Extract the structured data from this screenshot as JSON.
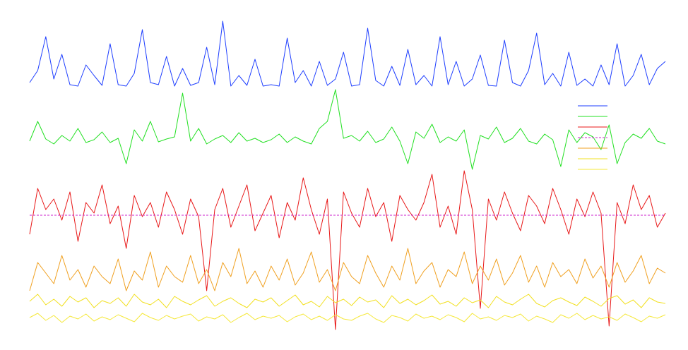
{
  "chart_data": {
    "type": "line",
    "ylim": [
      0,
      450
    ],
    "series": [
      {
        "color": "#1f3fff",
        "values": [
          355,
          372,
          420,
          360,
          395,
          352,
          350,
          380,
          365,
          351,
          410,
          352,
          350,
          368,
          430,
          355,
          352,
          392,
          350,
          375,
          351,
          355,
          405,
          352,
          442,
          350,
          365,
          351,
          388,
          350,
          352,
          350,
          418,
          355,
          372,
          350,
          385,
          351,
          360,
          398,
          350,
          352,
          432,
          358,
          350,
          378,
          351,
          402,
          352,
          365,
          350,
          420,
          352,
          385,
          350,
          360,
          394,
          351,
          350,
          415,
          355,
          350,
          372,
          425,
          352,
          368,
          350,
          398,
          351,
          360,
          350,
          380,
          352,
          410,
          350,
          365,
          395,
          352,
          375,
          385
        ]
      },
      {
        "color": "#22e022",
        "values": [
          272,
          300,
          275,
          268,
          280,
          272,
          290,
          270,
          274,
          285,
          270,
          276,
          240,
          288,
          272,
          300,
          271,
          275,
          278,
          340,
          272,
          290,
          268,
          275,
          280,
          270,
          284,
          272,
          276,
          270,
          274,
          282,
          270,
          278,
          272,
          268,
          290,
          300,
          345,
          276,
          280,
          272,
          286,
          270,
          275,
          292,
          272,
          240,
          285,
          276,
          296,
          270,
          278,
          272,
          288,
          232,
          280,
          275,
          292,
          270,
          276,
          290,
          272,
          268,
          282,
          274,
          236,
          288,
          270,
          284,
          278,
          260,
          295,
          240,
          270,
          282,
          276,
          290,
          272,
          268
        ]
      },
      {
        "color": "#e81818",
        "values": [
          140,
          205,
          175,
          190,
          160,
          200,
          130,
          185,
          170,
          210,
          155,
          180,
          120,
          195,
          165,
          185,
          150,
          200,
          175,
          140,
          190,
          165,
          60,
          175,
          205,
          150,
          180,
          210,
          145,
          170,
          195,
          135,
          185,
          160,
          220,
          175,
          140,
          190,
          5,
          200,
          170,
          150,
          205,
          165,
          185,
          130,
          195,
          175,
          160,
          185,
          225,
          150,
          180,
          140,
          230,
          175,
          35,
          190,
          160,
          200,
          170,
          145,
          195,
          180,
          155,
          205,
          175,
          140,
          190,
          165,
          200,
          170,
          10,
          185,
          155,
          210,
          175,
          195,
          150,
          170
        ]
      },
      {
        "color": "#cc22cc",
        "dash": true,
        "values": [
          167,
          167
        ]
      },
      {
        "color": "#f0a020",
        "values": [
          60,
          100,
          85,
          70,
          110,
          75,
          90,
          65,
          95,
          80,
          70,
          105,
          60,
          88,
          75,
          115,
          65,
          95,
          80,
          72,
          110,
          70,
          90,
          60,
          100,
          80,
          120,
          70,
          88,
          65,
          95,
          75,
          105,
          68,
          85,
          115,
          72,
          90,
          60,
          100,
          80,
          70,
          110,
          85,
          65,
          95,
          75,
          120,
          70,
          88,
          100,
          65,
          90,
          80,
          115,
          70,
          95,
          75,
          105,
          68,
          85,
          110,
          72,
          95,
          65,
          100,
          80,
          90,
          70,
          105,
          78,
          95,
          65,
          100,
          72,
          88,
          110,
          70,
          92,
          85
        ]
      },
      {
        "color": "#f2e020",
        "values": [
          45,
          55,
          40,
          48,
          38,
          52,
          44,
          50,
          36,
          46,
          42,
          50,
          38,
          55,
          44,
          40,
          48,
          36,
          52,
          45,
          40,
          47,
          53,
          38,
          45,
          50,
          42,
          36,
          48,
          44,
          50,
          38,
          46,
          54,
          40,
          45,
          37,
          52,
          43,
          48,
          39,
          51,
          44,
          47,
          36,
          53,
          42,
          48,
          40,
          46,
          54,
          41,
          45,
          38,
          50,
          43,
          47,
          36,
          52,
          44,
          40,
          48,
          55,
          42,
          37,
          46,
          50,
          44,
          39,
          51,
          45,
          38,
          49,
          53,
          41,
          47,
          36,
          50,
          44,
          42
        ]
      },
      {
        "color": "#f5e83a",
        "values": [
          22,
          28,
          18,
          25,
          15,
          24,
          20,
          27,
          17,
          23,
          19,
          26,
          21,
          16,
          28,
          22,
          18,
          25,
          20,
          24,
          27,
          17,
          23,
          20,
          26,
          15,
          22,
          28,
          19,
          24,
          21,
          25,
          16,
          23,
          27,
          19,
          24,
          18,
          26,
          20,
          18,
          24,
          28,
          20,
          15,
          25,
          22,
          17,
          27,
          21,
          24,
          19,
          26,
          22,
          16,
          28,
          20,
          23,
          18,
          25,
          22,
          27,
          17,
          24,
          20,
          15,
          26,
          21,
          28,
          19,
          25,
          20,
          23,
          18,
          27,
          22,
          16,
          24,
          21,
          26
        ]
      }
    ]
  }
}
